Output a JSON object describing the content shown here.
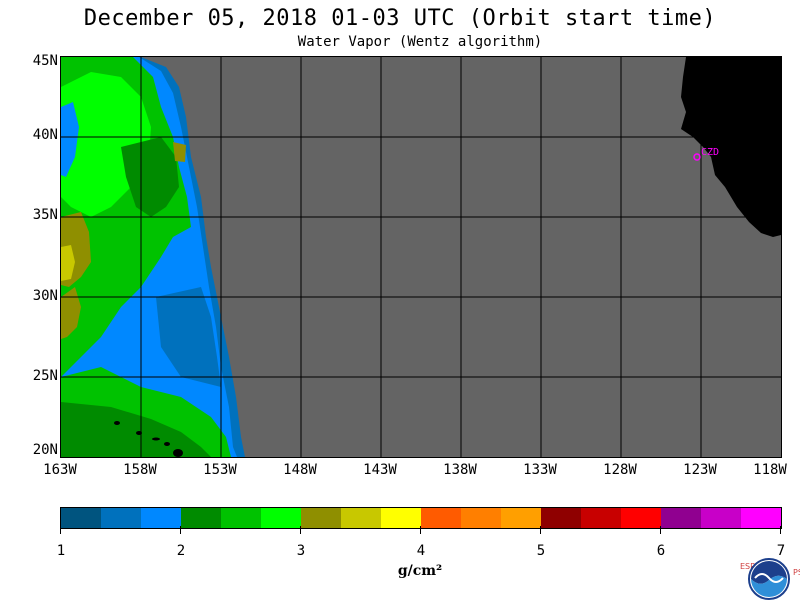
{
  "title": "December 05, 2018  01-03 UTC  (Orbit start time)",
  "subtitle": "Water Vapor (Wentz algorithm)",
  "lat_labels": [
    "45N",
    "40N",
    "35N",
    "30N",
    "25N",
    "20N"
  ],
  "lon_labels": [
    "163W",
    "158W",
    "153W",
    "148W",
    "143W",
    "138W",
    "133W",
    "128W",
    "123W",
    "118W"
  ],
  "station_label": "CZD",
  "colorbar": {
    "colors": [
      "#00547f",
      "#0071bd",
      "#0088ff",
      "#008b00",
      "#00c200",
      "#00ff00",
      "#8f8f00",
      "#c8c800",
      "#ffff00",
      "#ff5b00",
      "#ff7f00",
      "#ff9f00",
      "#8f0000",
      "#c80000",
      "#ff0000",
      "#900090",
      "#c800c8",
      "#ff00ff"
    ],
    "tick_labels": [
      "1",
      "2",
      "3",
      "4",
      "5",
      "6",
      "7"
    ]
  },
  "units": "g/cm²",
  "logo_text": "NOAA",
  "side_text_left": "ESRL",
  "side_text_right": "PSD",
  "colors": {
    "no_data": "#646464",
    "land": "#000000",
    "station": "#ff00ff",
    "grid": "#000000"
  }
}
